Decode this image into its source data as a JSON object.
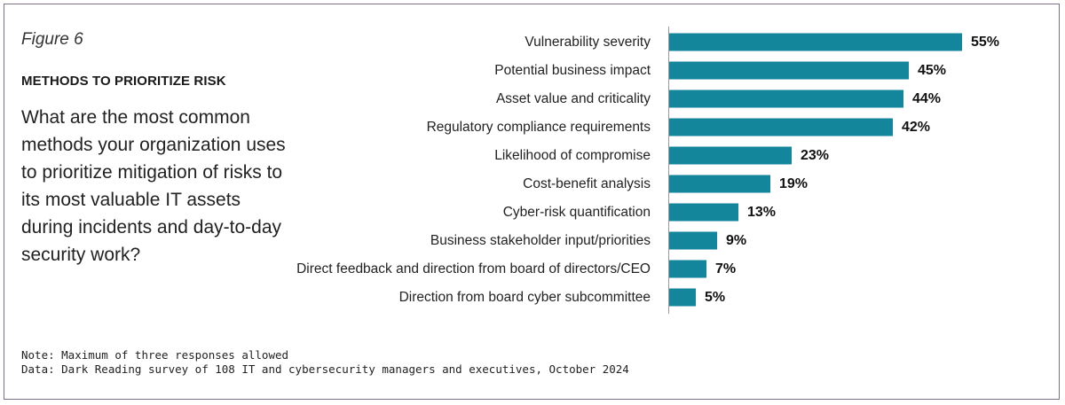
{
  "figure_label": "Figure 6",
  "section_title": "METHODS TO PRIORITIZE RISK",
  "question": "What are the most common methods your organization uses to prioritize mitigation of risks to its most valuable IT assets during incidents and day-to-day security work?",
  "note": "Note: Maximum of three responses allowed",
  "source": "Data: Dark Reading survey of 108 IT and cybersecurity managers and executives, October 2024",
  "colors": {
    "bar": "#13869c",
    "frame": "#7d6e8a",
    "axis": "#9a9a9a"
  },
  "chart_data": {
    "type": "bar",
    "orientation": "horizontal",
    "categories": [
      "Vulnerability severity",
      "Potential business impact",
      "Asset value and criticality",
      "Regulatory compliance requirements",
      "Likelihood of compromise",
      "Cost-benefit analysis",
      "Cyber-risk quantification",
      "Business stakeholder input/priorities",
      "Direct feedback and direction from board of directors/CEO",
      "Direction from board cyber subcommittee"
    ],
    "values": [
      55,
      45,
      44,
      42,
      23,
      19,
      13,
      9,
      7,
      5
    ],
    "value_labels": [
      "55%",
      "45%",
      "44%",
      "42%",
      "23%",
      "19%",
      "13%",
      "9%",
      "7%",
      "5%"
    ],
    "unit": "%",
    "xlim": [
      0,
      55
    ],
    "grid": false
  }
}
